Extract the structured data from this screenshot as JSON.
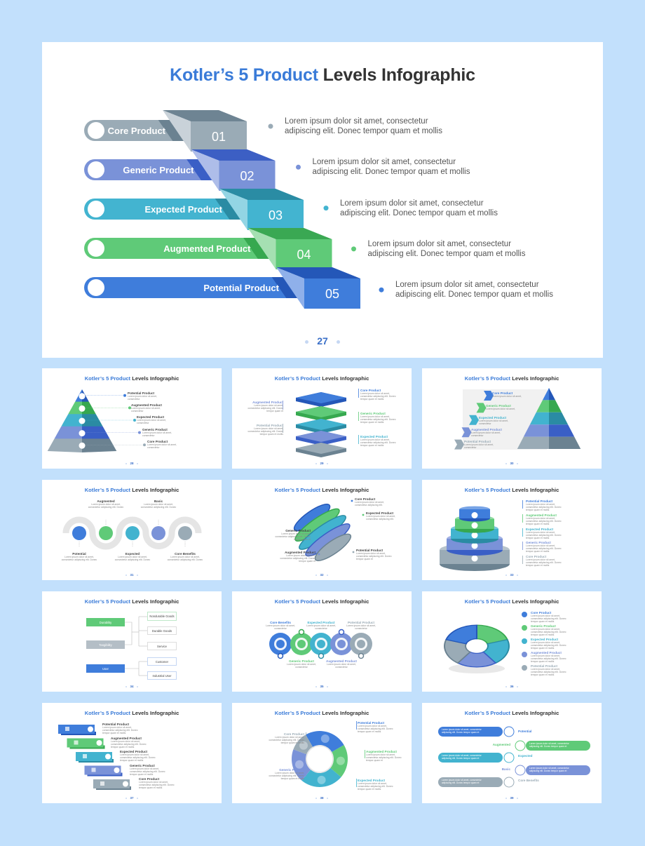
{
  "colors": {
    "blue": "#3f7ddb",
    "green": "#5fca78",
    "teal": "#42b3cf",
    "periwinkle": "#7a92d8",
    "gray": "#9aabb6",
    "background": "#c2e0fc",
    "title_accent": "#3a7bd8"
  },
  "main": {
    "title_highlight": "Kotler’s 5 Product",
    "title_rest": " Levels Infographic",
    "page_number": "27",
    "levels": [
      {
        "num": "01",
        "label": "Core Product",
        "line1": "Lorem ipsum dolor sit amet, consectetur",
        "line2": "adipiscing elit. Donec tempor quam et mollis",
        "color": "#9aabb6"
      },
      {
        "num": "02",
        "label": "Generic Product",
        "line1": "Lorem ipsum dolor sit amet, consectetur",
        "line2": "adipiscing elit. Donec tempor quam et mollis",
        "color": "#7a92d8"
      },
      {
        "num": "03",
        "label": "Expected Product",
        "line1": "Lorem ipsum dolor sit amet, consectetur",
        "line2": "adipiscing elit. Donec tempor quam et mollis",
        "color": "#43b4d0"
      },
      {
        "num": "04",
        "label": "Augmented Product",
        "line1": "Lorem ipsum dolor sit amet, consectetur",
        "line2": "adipiscing elit. Donec tempor quam et mollis",
        "color": "#5fca78"
      },
      {
        "num": "05",
        "label": "Potential Product",
        "line1": "Lorem ipsum dolor sit amet, consectetur",
        "line2": "adipiscing elit. Donec tempor quam et mollis",
        "color": "#3f7ddb"
      }
    ]
  },
  "thumbnails": {
    "title_highlight": "Kotler’s 5 Product",
    "title_rest": " Levels Infographic",
    "items": [
      {
        "page_number": "28",
        "labels": [
          {
            "title": "Potential Product",
            "text": "Lorem ipsum dolor sit amet, consectetur"
          },
          {
            "title": "Augmented Product",
            "text": "Lorem ipsum dolor sit amet, consectetur"
          },
          {
            "title": "Expected Product",
            "text": "Lorem ipsum dolor sit amet, consectetur"
          },
          {
            "title": "Generic Product",
            "text": "Lorem ipsum dolor sit amet, consectetur"
          },
          {
            "title": "Core Product",
            "text": "Lorem ipsum dolor sit amet, consectetur"
          }
        ]
      },
      {
        "page_number": "29",
        "labels": [
          {
            "title": "Augmented Product",
            "text": "Lorem ipsum dolor sit amet, consectetur adipiscing elit. Donec tempor quam et"
          },
          {
            "title": "Potential Product",
            "text": "Lorem ipsum dolor sit amet, consectetur adipiscing elit. Donec tempor quam et mollis"
          },
          {
            "title": "Core Product",
            "text": "Lorem ipsum dolor sit amet, consectetur adipiscing elit. Donec tempor quam et mollis"
          },
          {
            "title": "Generic Product",
            "text": "Lorem ipsum dolor sit amet, consectetur adipiscing elit. Donec tempor quam et mollis"
          },
          {
            "title": "Expected Product",
            "text": "Lorem ipsum dolor sit amet, consectetur adipiscing elit. Donec tempor quam et mollis"
          }
        ]
      },
      {
        "page_number": "30",
        "labels": [
          {
            "title": "Core Product",
            "text": "Lorem ipsum dolor sit amet,"
          },
          {
            "title": "Generic Product",
            "text": "Lorem ipsum dolor sit amet,"
          },
          {
            "title": "Expected Product",
            "text": "Lorem ipsum dolor sit amet, consectetur"
          },
          {
            "title": "Augmented Product",
            "text": "Lorem ipsum dolor sit amet, consectetur"
          },
          {
            "title": "Potential Product",
            "text": "Lorem ipsum dolor sit amet, consectetur"
          }
        ]
      },
      {
        "page_number": "31",
        "labels": [
          {
            "title": "Augmented",
            "text": "Lorem ipsum dolor sit amet, consectetur adipiscing elit. Donec"
          },
          {
            "title": "Basic",
            "text": "Lorem ipsum dolor sit amet, consectetur adipiscing elit. Donec"
          },
          {
            "title": "Potential",
            "text": "Lorem ipsum dolor sit amet, consectetur adipiscing elit. Donec"
          },
          {
            "title": "Expected",
            "text": "Lorem ipsum dolor sit amet, consectetur adipiscing elit. Donec"
          },
          {
            "title": "Core Benefits",
            "text": "Lorem ipsum dolor sit amet, consectetur adipiscing elit. Donec"
          }
        ]
      },
      {
        "page_number": "32",
        "labels": [
          {
            "title": "Core Product",
            "text": "Lorem ipsum dolor sit amet, consectetur adipiscing elit."
          },
          {
            "title": "Expected Product",
            "text": "Lorem ipsum dolor sit amet, consectetur adipiscing elit."
          },
          {
            "title": "Generic Product",
            "text": "Lorem ipsum dolor sit amet, consectetur adipiscing elit. Donec tempor quam et"
          },
          {
            "title": "Augmented Product",
            "text": "Lorem ipsum dolor sit amet, consectetur adipiscing elit. Donec tempor quam et"
          },
          {
            "title": "Potential Product",
            "text": "Lorem ipsum dolor sit amet, consectetur adipiscing elit. Donec tempor quam et"
          }
        ]
      },
      {
        "page_number": "33",
        "labels": [
          {
            "title": "Potential Product",
            "text": "Lorem ipsum dolor sit amet, consectetur adipiscing elit. Donec tempor quam et mollis"
          },
          {
            "title": "Augmented Product",
            "text": "Lorem ipsum dolor sit amet, consectetur adipiscing elit. Donec tempor quam et mollis"
          },
          {
            "title": "Expected Product",
            "text": "Lorem ipsum dolor sit amet, consectetur adipiscing elit. Donec tempor quam et mollis"
          },
          {
            "title": "Generic Product",
            "text": "Lorem ipsum dolor sit amet, consectetur adipiscing elit. Donec tempor quam et mollis"
          },
          {
            "title": "Core Product",
            "text": "Lorem ipsum dolor sit amet, consectetur adipiscing elit. Donec tempor quam et mollis"
          }
        ]
      },
      {
        "page_number": "34",
        "boxes": [
          "Durability",
          "Tangibility",
          "User",
          "Nondurable Goods",
          "Durable Goods",
          "Service",
          "Customer",
          "Industrial User"
        ]
      },
      {
        "page_number": "35",
        "labels": [
          {
            "title": "Core Benefits",
            "text": "Lorem ipsum dolor sit amet, consectetur"
          },
          {
            "title": "Generic Product",
            "text": "Lorem ipsum dolor sit amet, consectetur"
          },
          {
            "title": "Expected Product",
            "text": "Lorem ipsum dolor sit amet, consectetur"
          },
          {
            "title": "Augmented Product",
            "text": "Lorem ipsum dolor sit amet, consectetur"
          },
          {
            "title": "Potential Product",
            "text": "Lorem ipsum dolor sit amet, consectetur"
          }
        ]
      },
      {
        "page_number": "36",
        "labels": [
          {
            "title": "Core Product",
            "text": "Lorem ipsum dolor sit amet, consectetur adipiscing elit. Donec tempor quam et mollis"
          },
          {
            "title": "Generic Product",
            "text": "Lorem ipsum dolor sit amet, consectetur adipiscing elit. Donec tempor quam et mollis"
          },
          {
            "title": "Expected Product",
            "text": "Lorem ipsum dolor sit amet, consectetur adipiscing elit. Donec tempor quam et mollis"
          },
          {
            "title": "Augmented Product",
            "text": "Lorem ipsum dolor sit amet, consectetur adipiscing elit. Donec tempor quam et mollis"
          },
          {
            "title": "Potential Product",
            "text": "Lorem ipsum dolor sit amet, consectetur adipiscing elit. Donec tempor quam et mollis"
          }
        ]
      },
      {
        "page_number": "37",
        "labels": [
          {
            "title": "Potential Product",
            "text": "Lorem ipsum dolor sit amet, consectetur adipiscing elit. Donec tempor quam et mollis"
          },
          {
            "title": "Augmented Product",
            "text": "Lorem ipsum dolor sit amet, consectetur adipiscing elit. Donec tempor quam et mollis"
          },
          {
            "title": "Expected Product",
            "text": "Lorem ipsum dolor sit amet, consectetur adipiscing elit. Donec tempor quam et mollis"
          },
          {
            "title": "Generic Product",
            "text": "Lorem ipsum dolor sit amet, consectetur adipiscing elit. Donec tempor quam et mollis"
          },
          {
            "title": "Core Product",
            "text": "Lorem ipsum dolor sit amet, consectetur adipiscing elit. Donec tempor quam et mollis"
          }
        ]
      },
      {
        "page_number": "38",
        "labels": [
          {
            "title": "Core Product",
            "text": "Lorem ipsum dolor sit amet, consectetur adipiscing elit. Donec tempor quam et mollis"
          },
          {
            "title": "Generic Product",
            "text": "Lorem ipsum dolor sit amet, consectetur adipiscing elit. Donec tempor quam et mollis"
          },
          {
            "title": "Potential Product",
            "text": "Lorem ipsum dolor sit amet, consectetur adipiscing elit. Donec tempor quam et mollis"
          },
          {
            "title": "Augmented Product",
            "text": "Lorem ipsum dolor sit amet, consectetur adipiscing elit. Donec tempor quam et"
          },
          {
            "title": "Expected Product",
            "text": "Lorem ipsum dolor sit amet, consectetur adipiscing elit. Donec tempor quam et mollis"
          }
        ]
      },
      {
        "page_number": "39",
        "labels": [
          {
            "title": "Potential",
            "text": "Lorem ipsum dolor sit amet, consectetur adipiscing elit. Donec tempor quam et"
          },
          {
            "title": "Augmented",
            "text": "Lorem ipsum dolor sit amet, consectetur adipiscing elit. Donec tempor quam et"
          },
          {
            "title": "Expected",
            "text": "Lorem ipsum dolor sit amet, consectetur adipiscing elit. Donec tempor quam et"
          },
          {
            "title": "Basic",
            "text": "Lorem ipsum dolor sit amet, consectetur adipiscing elit. Donec tempor quam et"
          },
          {
            "title": "Core Benefits",
            "text": "Lorem ipsum dolor sit amet, consectetur adipiscing elit. Donec tempor quam et"
          }
        ]
      }
    ]
  }
}
